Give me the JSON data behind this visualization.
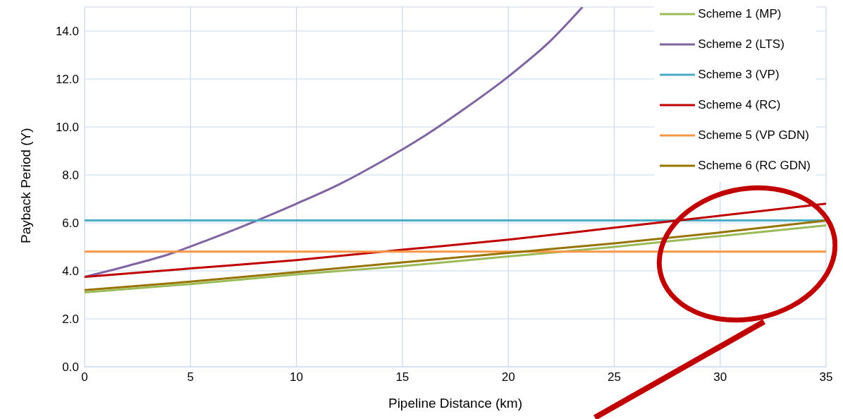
{
  "chart_data": {
    "type": "line",
    "xlabel": "Pipeline Distance (km)",
    "ylabel": "Payback Period (Y)",
    "xlim": [
      0,
      35
    ],
    "xticks": [
      0,
      5,
      10,
      15,
      20,
      25,
      30,
      35
    ],
    "ylim": [
      0,
      15
    ],
    "yticks": [
      {
        "value": 0,
        "label": "0.0"
      },
      {
        "value": 2,
        "label": "2.0"
      },
      {
        "value": 4,
        "label": "4.0"
      },
      {
        "value": 6,
        "label": "6.0"
      },
      {
        "value": 8,
        "label": "8.0"
      },
      {
        "value": 10,
        "label": "10.0"
      },
      {
        "value": 12,
        "label": "12.0"
      },
      {
        "value": 14,
        "label": "14.0"
      }
    ],
    "grid": true,
    "legend": "top right",
    "series": [
      {
        "name": "Scheme 1 (MP)",
        "color": "#9bbb59",
        "x": [
          0,
          5,
          10,
          15,
          20,
          25,
          30,
          35
        ],
        "values": [
          3.1,
          3.45,
          3.85,
          4.2,
          4.6,
          5.0,
          5.45,
          5.9
        ]
      },
      {
        "name": "Scheme 2 (LTS)",
        "color": "#8064a2",
        "x": [
          0,
          2,
          4,
          6,
          8,
          10,
          12,
          14,
          16,
          18,
          20,
          22,
          23.5
        ],
        "values": [
          3.75,
          4.2,
          4.7,
          5.35,
          6.05,
          6.8,
          7.6,
          8.55,
          9.6,
          10.8,
          12.1,
          13.6,
          15.0
        ]
      },
      {
        "name": "Scheme 3 (VP)",
        "color": "#4bacc6",
        "x": [
          0,
          35
        ],
        "values": [
          6.1,
          6.1
        ]
      },
      {
        "name": "Scheme 4 (RC)",
        "color": "#c00000",
        "x": [
          0,
          5,
          10,
          15,
          20,
          25,
          30,
          35
        ],
        "values": [
          3.75,
          4.1,
          4.45,
          4.88,
          5.3,
          5.8,
          6.3,
          6.8
        ]
      },
      {
        "name": "Scheme 5 (VP GDN)",
        "color": "#f79646",
        "x": [
          0,
          35
        ],
        "values": [
          4.8,
          4.8
        ]
      },
      {
        "name": "Scheme 6 (RC GDN)",
        "color": "#977300",
        "x": [
          0,
          5,
          10,
          15,
          20,
          25,
          30,
          35
        ],
        "values": [
          3.2,
          3.55,
          3.95,
          4.35,
          4.75,
          5.15,
          5.6,
          6.1
        ]
      }
    ]
  }
}
